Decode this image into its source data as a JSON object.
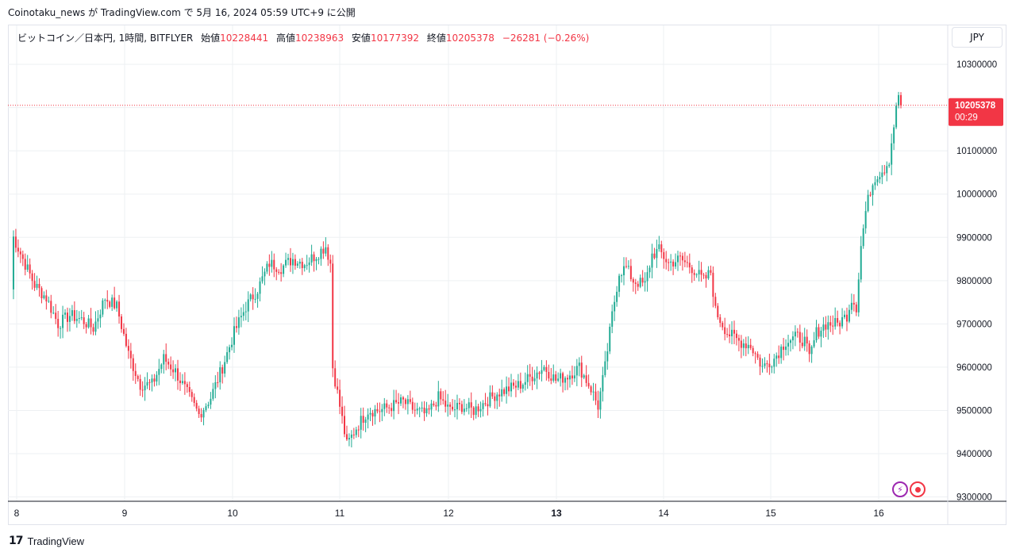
{
  "header": {
    "text": "Coinotaku_news が TradingView.com で 5月 16, 2024 05:59 UTC+9 に公開"
  },
  "legend": {
    "symbol": "ビットコイン／日本円, 1時間, BITFLYER",
    "open_label": "始値",
    "open": "10228441",
    "high_label": "高値",
    "high": "10238963",
    "low_label": "安値",
    "low": "10177392",
    "close_label": "終値",
    "close": "10205378",
    "change": "−26281 (−0.26%)"
  },
  "currency_button": "JPY",
  "price_tag": {
    "price": "10205378",
    "countdown": "00:29"
  },
  "footer": {
    "brand": "TradingView"
  },
  "icons": [
    "lightning-icon",
    "record-icon"
  ],
  "colors": {
    "up": "#22ab94",
    "down": "#f23645",
    "grid": "#eef0f3",
    "text": "#131722"
  },
  "chart_data": {
    "type": "candlestick",
    "y_ticks": [
      9300000,
      9400000,
      9500000,
      9600000,
      9700000,
      9800000,
      9900000,
      10000000,
      10100000,
      10200000,
      10300000
    ],
    "y_tick_labels": [
      "9300000",
      "9400000",
      "9500000",
      "9600000",
      "9700000",
      "9800000",
      "9900000",
      "10000000",
      "10100000",
      "10200000",
      "10300000"
    ],
    "ylim": [
      9290000,
      10390000
    ],
    "x_tick_labels": [
      "8",
      "9",
      "10",
      "11",
      "12",
      "13",
      "14",
      "15",
      "16"
    ],
    "bold_x_tick": "13",
    "grid": true,
    "last_price": 10205378,
    "key_closes": [
      [
        0,
        9780000
      ],
      [
        1,
        9900000
      ],
      [
        5,
        9850000
      ],
      [
        10,
        9790000
      ],
      [
        15,
        9760000
      ],
      [
        20,
        9700000
      ],
      [
        25,
        9720000
      ],
      [
        30,
        9710000
      ],
      [
        35,
        9690000
      ],
      [
        40,
        9760000
      ],
      [
        45,
        9740000
      ],
      [
        50,
        9630000
      ],
      [
        55,
        9560000
      ],
      [
        60,
        9560000
      ],
      [
        65,
        9620000
      ],
      [
        70,
        9590000
      ],
      [
        75,
        9540000
      ],
      [
        80,
        9490000
      ],
      [
        85,
        9530000
      ],
      [
        90,
        9600000
      ],
      [
        95,
        9680000
      ],
      [
        100,
        9740000
      ],
      [
        105,
        9780000
      ],
      [
        110,
        9840000
      ],
      [
        115,
        9830000
      ],
      [
        120,
        9850000
      ],
      [
        125,
        9840000
      ],
      [
        130,
        9860000
      ],
      [
        134,
        9880000
      ],
      [
        136,
        9840000
      ],
      [
        137,
        9600000
      ],
      [
        140,
        9510000
      ],
      [
        143,
        9420000
      ],
      [
        147,
        9460000
      ],
      [
        152,
        9500000
      ],
      [
        157,
        9500000
      ],
      [
        162,
        9510000
      ],
      [
        167,
        9520000
      ],
      [
        172,
        9500000
      ],
      [
        177,
        9490000
      ],
      [
        182,
        9530000
      ],
      [
        187,
        9500000
      ],
      [
        192,
        9510000
      ],
      [
        197,
        9500000
      ],
      [
        202,
        9520000
      ],
      [
        207,
        9540000
      ],
      [
        212,
        9550000
      ],
      [
        217,
        9560000
      ],
      [
        222,
        9580000
      ],
      [
        227,
        9600000
      ],
      [
        232,
        9570000
      ],
      [
        237,
        9580000
      ],
      [
        242,
        9600000
      ],
      [
        247,
        9550000
      ],
      [
        250,
        9510000
      ],
      [
        253,
        9600000
      ],
      [
        256,
        9720000
      ],
      [
        259,
        9820000
      ],
      [
        262,
        9830000
      ],
      [
        265,
        9800000
      ],
      [
        270,
        9790000
      ],
      [
        273,
        9860000
      ],
      [
        276,
        9870000
      ],
      [
        280,
        9840000
      ],
      [
        285,
        9850000
      ],
      [
        290,
        9830000
      ],
      [
        295,
        9800000
      ],
      [
        298,
        9820000
      ],
      [
        300,
        9730000
      ],
      [
        305,
        9680000
      ],
      [
        310,
        9660000
      ],
      [
        315,
        9650000
      ],
      [
        320,
        9600000
      ],
      [
        325,
        9620000
      ],
      [
        330,
        9660000
      ],
      [
        335,
        9670000
      ],
      [
        338,
        9660000
      ],
      [
        340,
        9620000
      ],
      [
        343,
        9680000
      ],
      [
        347,
        9700000
      ],
      [
        352,
        9700000
      ],
      [
        356,
        9720000
      ],
      [
        358,
        9760000
      ],
      [
        360,
        9740000
      ],
      [
        362,
        9880000
      ],
      [
        364,
        9960000
      ],
      [
        366,
        10010000
      ],
      [
        368,
        10040000
      ],
      [
        370,
        10050000
      ],
      [
        372,
        10060000
      ],
      [
        374,
        10080000
      ],
      [
        376,
        10160000
      ],
      [
        378,
        10230000
      ],
      [
        379,
        10205378
      ]
    ]
  }
}
